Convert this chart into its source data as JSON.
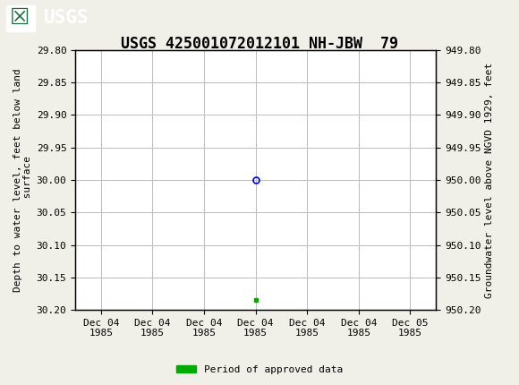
{
  "title": "USGS 425001072012101 NH-JBW  79",
  "ylabel_left": "Depth to water level, feet below land\n surface",
  "ylabel_right": "Groundwater level above NGVD 1929, feet",
  "ylim_left": [
    29.8,
    30.2
  ],
  "ylim_right": [
    949.8,
    950.2
  ],
  "yticks_left": [
    29.8,
    29.85,
    29.9,
    29.95,
    30.0,
    30.05,
    30.1,
    30.15,
    30.2
  ],
  "yticks_right": [
    950.2,
    950.15,
    950.1,
    950.05,
    950.0,
    949.95,
    949.9,
    949.85,
    949.8
  ],
  "background_color": "#f0f0e8",
  "plot_bg_color": "#ffffff",
  "header_color": "#1a6b3c",
  "grid_color": "#bbbbbb",
  "data_point_y": 30.0,
  "data_point_color": "#0000cc",
  "data_point_marker": "o",
  "data_point_markersize": 5,
  "approved_bar_y": 30.185,
  "approved_bar_color": "#00aa00",
  "legend_label": "Period of approved data",
  "legend_color": "#00aa00",
  "xtick_labels": [
    "Dec 04\n1985",
    "Dec 04\n1985",
    "Dec 04\n1985",
    "Dec 04\n1985",
    "Dec 04\n1985",
    "Dec 04\n1985",
    "Dec 05\n1985"
  ],
  "xtick_positions": [
    0,
    1,
    2,
    3,
    4,
    5,
    6
  ],
  "font_family": "monospace",
  "title_fontsize": 12,
  "tick_fontsize": 8,
  "label_fontsize": 8
}
